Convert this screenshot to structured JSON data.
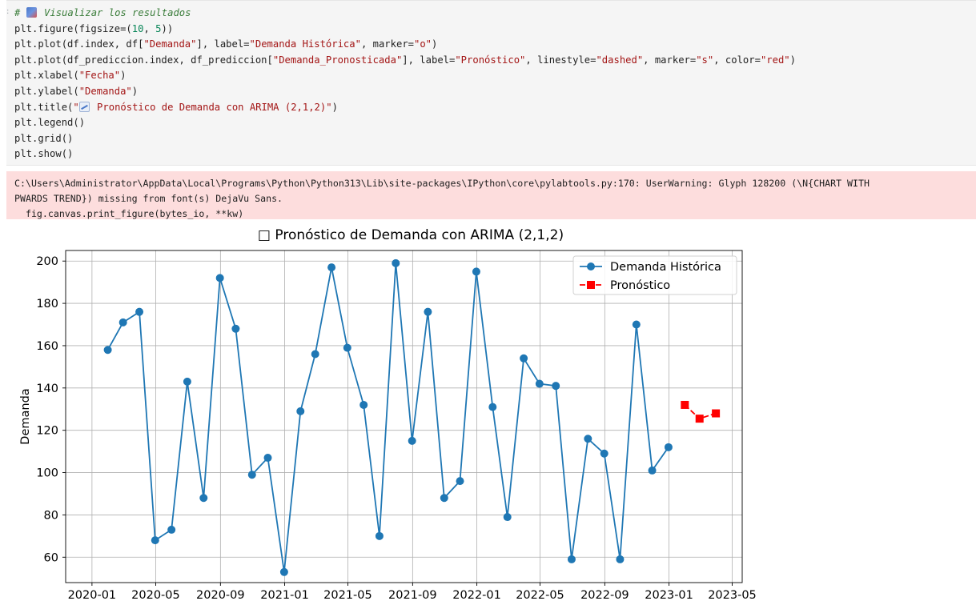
{
  "code": {
    "lines": [
      [
        {
          "t": "# ",
          "c": "comment"
        },
        {
          "t": "",
          "c": "emoji-bar"
        },
        {
          "t": " Visualizar los resultados",
          "c": "comment"
        }
      ],
      [
        {
          "t": "plt.figure(figsize=",
          "c": "plain"
        },
        {
          "t": "(",
          "c": "plain"
        },
        {
          "t": "10",
          "c": "num"
        },
        {
          "t": ", ",
          "c": "plain"
        },
        {
          "t": "5",
          "c": "num"
        },
        {
          "t": "))",
          "c": "plain"
        }
      ],
      [
        {
          "t": "plt.plot(df.index, df[",
          "c": "plain"
        },
        {
          "t": "\"Demanda\"",
          "c": "str"
        },
        {
          "t": "], label=",
          "c": "plain"
        },
        {
          "t": "\"Demanda Histórica\"",
          "c": "str"
        },
        {
          "t": ", marker=",
          "c": "plain"
        },
        {
          "t": "\"o\"",
          "c": "str"
        },
        {
          "t": ")",
          "c": "plain"
        }
      ],
      [
        {
          "t": "plt.plot(df_prediccion.index, df_prediccion[",
          "c": "plain"
        },
        {
          "t": "\"Demanda_Pronosticada\"",
          "c": "str"
        },
        {
          "t": "], label=",
          "c": "plain"
        },
        {
          "t": "\"Pronóstico\"",
          "c": "str"
        },
        {
          "t": ", linestyle=",
          "c": "plain"
        },
        {
          "t": "\"dashed\"",
          "c": "str"
        },
        {
          "t": ", marker=",
          "c": "plain"
        },
        {
          "t": "\"s\"",
          "c": "str"
        },
        {
          "t": ", color=",
          "c": "plain"
        },
        {
          "t": "\"red\"",
          "c": "str"
        },
        {
          "t": ")",
          "c": "plain"
        }
      ],
      [
        {
          "t": "plt.xlabel(",
          "c": "plain"
        },
        {
          "t": "\"Fecha\"",
          "c": "str"
        },
        {
          "t": ")",
          "c": "plain"
        }
      ],
      [
        {
          "t": "plt.ylabel(",
          "c": "plain"
        },
        {
          "t": "\"Demanda\"",
          "c": "str"
        },
        {
          "t": ")",
          "c": "plain"
        }
      ],
      [
        {
          "t": "plt.title(",
          "c": "plain"
        },
        {
          "t": "\"",
          "c": "str"
        },
        {
          "t": "",
          "c": "emoji-chart"
        },
        {
          "t": " Pronóstico de Demanda con ARIMA (2,1,2)\"",
          "c": "str"
        },
        {
          "t": ")",
          "c": "plain"
        }
      ],
      [
        {
          "t": "plt.legend()",
          "c": "plain"
        }
      ],
      [
        {
          "t": "plt.grid()",
          "c": "plain"
        }
      ],
      [
        {
          "t": "plt.show()",
          "c": "plain"
        }
      ]
    ]
  },
  "warning": {
    "text": "C:\\Users\\Administrator\\AppData\\Local\\Programs\\Python\\Python313\\Lib\\site-packages\\IPython\\core\\pylabtools.py:170: UserWarning: Glyph 128200 (\\N{CHART WITH\nPWARDS TREND}) missing from font(s) DejaVu Sans.\n  fig.canvas.print_figure(bytes_io, **kw)"
  },
  "chart_data": {
    "type": "line",
    "title": "□ Pronóstico de Demanda con ARIMA (2,1,2)",
    "xlabel": "",
    "ylabel": "Demanda",
    "ylim": [
      48,
      205
    ],
    "yticks": [
      60,
      80,
      100,
      120,
      140,
      160,
      180,
      200
    ],
    "xlim": [
      "2019-11-12",
      "2023-05-20"
    ],
    "xticks": [
      "2020-01",
      "2020-05",
      "2020-09",
      "2021-01",
      "2021-05",
      "2021-09",
      "2022-01",
      "2022-05",
      "2022-09",
      "2023-01",
      "2023-05"
    ],
    "grid": true,
    "legend_position": "top-right",
    "series": [
      {
        "name": "Demanda Histórica",
        "color": "#1f77b4",
        "marker": "circle",
        "linestyle": "solid",
        "x": [
          "2020-01-31",
          "2020-02-29",
          "2020-03-31",
          "2020-04-30",
          "2020-05-31",
          "2020-06-30",
          "2020-07-31",
          "2020-08-31",
          "2020-09-30",
          "2020-10-31",
          "2020-11-30",
          "2020-12-31",
          "2021-01-31",
          "2021-02-28",
          "2021-03-31",
          "2021-04-30",
          "2021-05-31",
          "2021-06-30",
          "2021-07-31",
          "2021-08-31",
          "2021-09-30",
          "2021-10-31",
          "2021-11-30",
          "2021-12-31",
          "2022-01-31",
          "2022-02-28",
          "2022-03-31",
          "2022-04-30",
          "2022-05-31",
          "2022-06-30",
          "2022-07-31",
          "2022-08-31",
          "2022-09-30",
          "2022-10-31",
          "2022-11-30",
          "2022-12-31"
        ],
        "values": [
          158,
          171,
          176,
          68,
          73,
          143,
          88,
          192,
          168,
          99,
          107,
          53,
          129,
          156,
          197,
          159,
          132,
          70,
          199,
          115,
          176,
          88,
          96,
          195,
          131,
          79,
          154,
          142,
          141,
          59,
          116,
          109,
          59,
          170,
          101,
          112
        ]
      },
      {
        "name": "Pronóstico",
        "color": "#ff0000",
        "marker": "square",
        "linestyle": "dashed",
        "x": [
          "2023-01-31",
          "2023-02-28",
          "2023-03-31"
        ],
        "values": [
          132,
          125.5,
          128
        ]
      }
    ]
  }
}
